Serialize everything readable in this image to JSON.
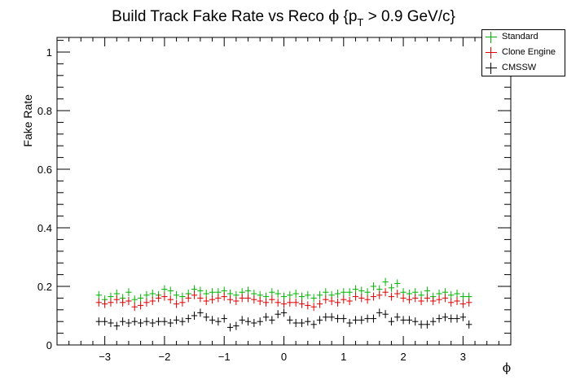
{
  "chart_data": {
    "type": "scatter",
    "title_main": "Build Track Fake Rate vs Reco ",
    "title_phi": "ϕ",
    "title_p": " {p",
    "title_sub": "T",
    "title_rest": " > 0.9 GeV/c}",
    "xlabel": "ϕ",
    "ylabel": "Fake Rate",
    "xlim": [
      -3.8,
      3.8
    ],
    "ylim": [
      0,
      1.05
    ],
    "xticks": [
      -3,
      -2,
      -1,
      0,
      1,
      2,
      3
    ],
    "xtick_labels": [
      "−3",
      "−2",
      "−1",
      "0",
      "1",
      "2",
      "3"
    ],
    "yticks": [
      0,
      0.2,
      0.4,
      0.6,
      0.8,
      1
    ],
    "ytick_labels": [
      "0",
      "0.2",
      "0.4",
      "0.6",
      "0.8",
      "1"
    ],
    "grid": false,
    "legend_position": "top-right",
    "x": [
      -3.1,
      -3.0,
      -2.9,
      -2.8,
      -2.7,
      -2.6,
      -2.5,
      -2.4,
      -2.3,
      -2.2,
      -2.1,
      -2.0,
      -1.9,
      -1.8,
      -1.7,
      -1.6,
      -1.5,
      -1.4,
      -1.3,
      -1.2,
      -1.1,
      -1.0,
      -0.9,
      -0.8,
      -0.7,
      -0.6,
      -0.5,
      -0.4,
      -0.3,
      -0.2,
      -0.1,
      0.0,
      0.1,
      0.2,
      0.3,
      0.4,
      0.5,
      0.6,
      0.7,
      0.8,
      0.9,
      1.0,
      1.1,
      1.2,
      1.3,
      1.4,
      1.5,
      1.6,
      1.7,
      1.8,
      1.9,
      2.0,
      2.1,
      2.2,
      2.3,
      2.4,
      2.5,
      2.6,
      2.7,
      2.8,
      2.9,
      3.0,
      3.1
    ],
    "series": [
      {
        "name": "Standard",
        "color": "#00b400",
        "values": [
          0.17,
          0.155,
          0.165,
          0.175,
          0.16,
          0.18,
          0.155,
          0.16,
          0.17,
          0.175,
          0.17,
          0.19,
          0.185,
          0.17,
          0.165,
          0.175,
          0.19,
          0.185,
          0.175,
          0.18,
          0.18,
          0.185,
          0.175,
          0.17,
          0.18,
          0.185,
          0.175,
          0.17,
          0.165,
          0.18,
          0.175,
          0.165,
          0.17,
          0.175,
          0.165,
          0.17,
          0.16,
          0.17,
          0.18,
          0.17,
          0.175,
          0.18,
          0.18,
          0.19,
          0.185,
          0.18,
          0.2,
          0.19,
          0.215,
          0.195,
          0.21,
          0.18,
          0.175,
          0.18,
          0.17,
          0.185,
          0.165,
          0.175,
          0.18,
          0.17,
          0.175,
          0.165,
          0.165
        ]
      },
      {
        "name": "Clone Engine",
        "color": "#e00000",
        "values": [
          0.145,
          0.14,
          0.145,
          0.155,
          0.145,
          0.15,
          0.13,
          0.135,
          0.145,
          0.15,
          0.16,
          0.165,
          0.155,
          0.14,
          0.145,
          0.16,
          0.17,
          0.16,
          0.15,
          0.155,
          0.16,
          0.165,
          0.155,
          0.15,
          0.16,
          0.16,
          0.155,
          0.15,
          0.145,
          0.155,
          0.145,
          0.14,
          0.145,
          0.145,
          0.14,
          0.135,
          0.13,
          0.14,
          0.155,
          0.15,
          0.145,
          0.155,
          0.15,
          0.165,
          0.16,
          0.155,
          0.165,
          0.17,
          0.18,
          0.165,
          0.175,
          0.16,
          0.155,
          0.16,
          0.15,
          0.16,
          0.15,
          0.155,
          0.16,
          0.145,
          0.15,
          0.14,
          0.145
        ]
      },
      {
        "name": "CMSSW",
        "color": "#000000",
        "values": [
          0.08,
          0.08,
          0.075,
          0.065,
          0.08,
          0.075,
          0.08,
          0.075,
          0.08,
          0.075,
          0.08,
          0.08,
          0.075,
          0.085,
          0.08,
          0.09,
          0.1,
          0.11,
          0.095,
          0.085,
          0.08,
          0.09,
          0.06,
          0.065,
          0.085,
          0.08,
          0.075,
          0.08,
          0.095,
          0.085,
          0.105,
          0.11,
          0.085,
          0.075,
          0.075,
          0.08,
          0.07,
          0.085,
          0.095,
          0.095,
          0.09,
          0.09,
          0.075,
          0.085,
          0.085,
          0.09,
          0.09,
          0.11,
          0.105,
          0.08,
          0.095,
          0.085,
          0.085,
          0.08,
          0.07,
          0.07,
          0.08,
          0.09,
          0.095,
          0.09,
          0.09,
          0.095,
          0.07
        ]
      }
    ]
  }
}
